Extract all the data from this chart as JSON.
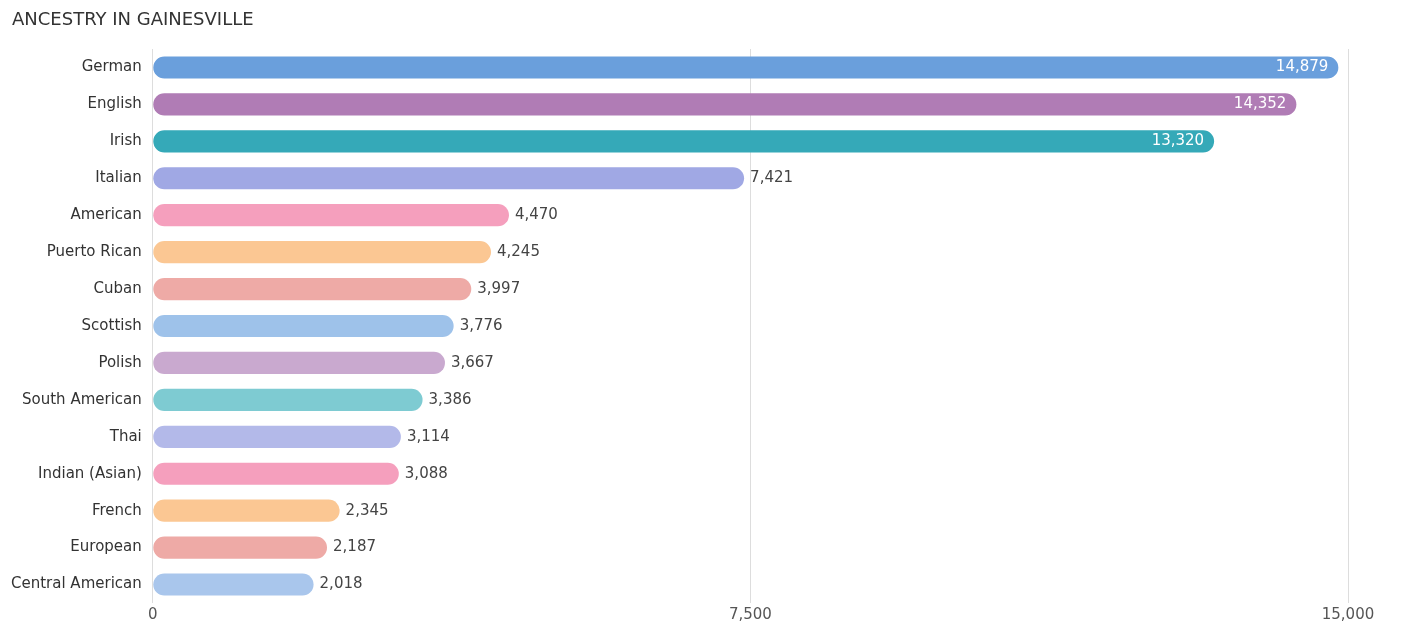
{
  "chart_data": {
    "type": "bar",
    "title": "ANCESTRY IN GAINESVILLE",
    "orientation": "horizontal",
    "categories": [
      "German",
      "English",
      "Irish",
      "Italian",
      "American",
      "Puerto Rican",
      "Cuban",
      "Scottish",
      "Polish",
      "South American",
      "Thai",
      "Indian (Asian)",
      "French",
      "European",
      "Central American"
    ],
    "values": [
      14879,
      14352,
      13320,
      7421,
      4470,
      4245,
      3997,
      3776,
      3667,
      3386,
      3114,
      3088,
      2345,
      2187,
      2018
    ],
    "colors": [
      "#6a9fdc",
      "#b07cb5",
      "#35a9b8",
      "#a0a8e4",
      "#f59fbd",
      "#fbc793",
      "#eeaaa6",
      "#9ec2ea",
      "#c9a9cf",
      "#7ecbd2",
      "#b3b9e9",
      "#f59fbd",
      "#fbc793",
      "#eeaaa6",
      "#a9c6ec"
    ],
    "value_labels": [
      "14,879",
      "14,352",
      "13,320",
      "7,421",
      "4,470",
      "4,245",
      "3,997",
      "3,776",
      "3,667",
      "3,386",
      "3,114",
      "3,088",
      "2,345",
      "2,187",
      "2,018"
    ],
    "xlim": [
      0,
      15000
    ],
    "xticks": [
      0,
      {
        "value": 7500,
        "label": "7,500"
      },
      {
        "value": 15000,
        "label": "15,000"
      }
    ],
    "grid": "x",
    "legend": false
  }
}
